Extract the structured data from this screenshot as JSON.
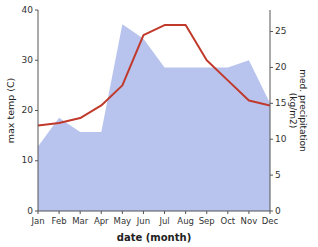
{
  "chart_data": {
    "type": "line",
    "xlabel": "date (month)",
    "ylabel": "max temp (C)",
    "y2label": "med. precipitation\n(kg/m2)",
    "categories": [
      "Jan",
      "Feb",
      "Mar",
      "Apr",
      "May",
      "Jun",
      "Jul",
      "Aug",
      "Sep",
      "Oct",
      "Nov",
      "Dec"
    ],
    "series": [
      {
        "type": "area",
        "axis": "y2",
        "color": "#b8c4ee",
        "values": [
          9,
          13,
          11,
          11,
          26,
          24,
          20,
          20,
          20,
          20,
          21,
          15
        ]
      },
      {
        "type": "line",
        "color": "#c0392b",
        "values": [
          17,
          17.5,
          18.5,
          21,
          25,
          35,
          37,
          37,
          30,
          26,
          22,
          21
        ]
      }
    ],
    "ylim": [
      0,
      40
    ],
    "yticks": [
      0,
      10,
      20,
      30,
      40
    ],
    "y2lim": [
      0,
      28
    ],
    "y2ticks": [
      0,
      5,
      10,
      15,
      20,
      25
    ],
    "grid": false
  }
}
